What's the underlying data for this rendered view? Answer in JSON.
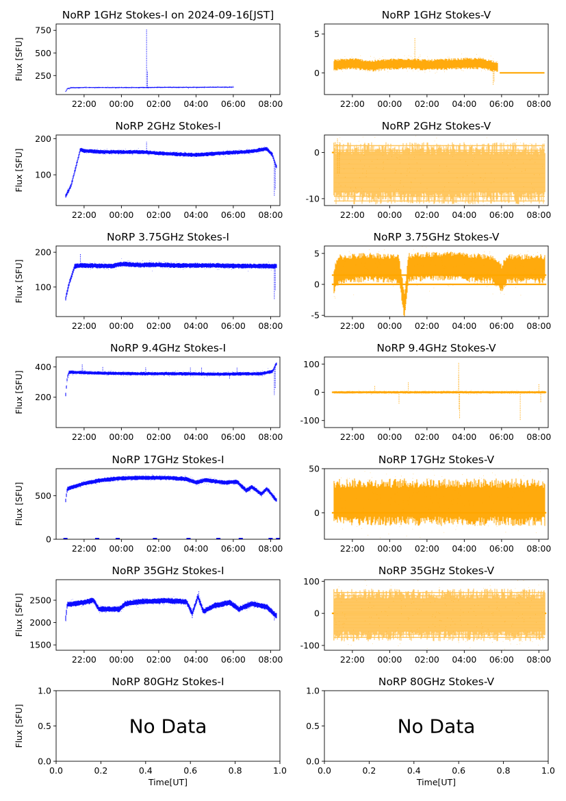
{
  "figure": {
    "series_colors": {
      "stokes_i": "#0000ff",
      "stokes_v": "#ffa500"
    },
    "time_ticks": [
      "22:00",
      "00:00",
      "02:00",
      "04:00",
      "06:00",
      "08:00"
    ],
    "xlabel": "Time[UT]",
    "no_data_text": "No Data"
  },
  "chart_data": [
    {
      "type": "scatter",
      "title": "NoRP 1GHz Stokes-I on 2024-09-16[JST]",
      "ylabel": "Flux [SFU]",
      "xlim": [
        20.5,
        32.5
      ],
      "ylim": [
        40,
        820
      ],
      "yticks": [
        250,
        500,
        750
      ],
      "x_start": 21.0,
      "x_end": 30.0,
      "profile": [
        [
          21.0,
          70
        ],
        [
          21.1,
          105
        ],
        [
          21.3,
          115
        ],
        [
          22.0,
          118
        ],
        [
          23.5,
          117
        ],
        [
          25.3,
          118
        ],
        [
          26.5,
          120
        ],
        [
          28.0,
          120
        ],
        [
          29.5,
          122
        ],
        [
          30.0,
          122
        ]
      ],
      "noise": 4,
      "spikes": [
        [
          25.35,
          760
        ],
        [
          25.4,
          300
        ],
        [
          24.0,
          125
        ]
      ],
      "flat_segments": []
    },
    {
      "type": "scatter",
      "title": "NoRP 1GHz Stokes-V",
      "ylabel": "",
      "xlim": [
        20.5,
        32.5
      ],
      "ylim": [
        -2.8,
        6.3
      ],
      "yticks": [
        0,
        5
      ],
      "x_start": 21.0,
      "x_end": 29.8,
      "profile": [
        [
          21.0,
          1.0
        ],
        [
          22.0,
          1.2
        ],
        [
          23.0,
          0.9
        ],
        [
          24.0,
          1.1
        ],
        [
          25.0,
          1.2
        ],
        [
          26.0,
          1.0
        ],
        [
          27.0,
          1.1
        ],
        [
          28.0,
          1.2
        ],
        [
          29.0,
          1.2
        ],
        [
          29.7,
          0.8
        ]
      ],
      "noise": 0.5,
      "spikes": [
        [
          25.35,
          4.5
        ],
        [
          29.55,
          -1.6
        ],
        [
          29.6,
          -1.2
        ]
      ],
      "flat_segments": [
        [
          29.9,
          32.3,
          0
        ]
      ]
    },
    {
      "type": "scatter",
      "title": "NoRP 2GHz Stokes-I",
      "ylabel": "Flux [SFU]",
      "xlim": [
        20.5,
        32.5
      ],
      "ylim": [
        15,
        210
      ],
      "yticks": [
        100,
        200
      ],
      "x_start": 21.0,
      "x_end": 32.3,
      "profile": [
        [
          21.0,
          40
        ],
        [
          21.3,
          70
        ],
        [
          21.6,
          130
        ],
        [
          21.8,
          170
        ],
        [
          22.0,
          166
        ],
        [
          23.0,
          163
        ],
        [
          25.0,
          163
        ],
        [
          26.5,
          158
        ],
        [
          28.0,
          155
        ],
        [
          29.5,
          160
        ],
        [
          31.0,
          165
        ],
        [
          31.8,
          172
        ],
        [
          32.1,
          155
        ],
        [
          32.3,
          122
        ]
      ],
      "noise": 4,
      "spikes": [
        [
          25.35,
          192
        ],
        [
          32.2,
          40
        ],
        [
          32.25,
          60
        ]
      ],
      "flat_segments": []
    },
    {
      "type": "scatter",
      "title": "NoRP 2GHz Stokes-V",
      "ylabel": "",
      "xlim": [
        20.5,
        32.5
      ],
      "ylim": [
        -11.5,
        3.8
      ],
      "yticks": [
        -10,
        0
      ],
      "x_start": 21.0,
      "x_end": 32.3,
      "profile": [
        [
          21.0,
          -4.5
        ],
        [
          32.3,
          -4.5
        ]
      ],
      "noise": 4.5,
      "quantized": true,
      "spikes": [
        [
          21.2,
          3.0
        ],
        [
          21.3,
          2.2
        ]
      ],
      "flat_segments": [
        [
          20.9,
          32.3,
          0
        ]
      ]
    },
    {
      "type": "scatter",
      "title": "NoRP 3.75GHz Stokes-I",
      "ylabel": "Flux [SFU]",
      "xlim": [
        20.5,
        32.5
      ],
      "ylim": [
        15,
        218
      ],
      "yticks": [
        100,
        200
      ],
      "x_start": 21.0,
      "x_end": 32.3,
      "profile": [
        [
          21.0,
          65
        ],
        [
          21.2,
          110
        ],
        [
          21.5,
          160
        ],
        [
          22.0,
          162
        ],
        [
          23.5,
          160
        ],
        [
          24.0,
          166
        ],
        [
          25.0,
          163
        ],
        [
          26.0,
          164
        ],
        [
          27.0,
          162
        ],
        [
          29.0,
          162
        ],
        [
          30.5,
          160
        ],
        [
          32.3,
          160
        ]
      ],
      "noise": 5,
      "spikes": [
        [
          21.8,
          195
        ],
        [
          32.2,
          65
        ],
        [
          32.25,
          90
        ],
        [
          25.0,
          172
        ]
      ],
      "flat_segments": []
    },
    {
      "type": "scatter",
      "title": "NoRP 3.75GHz Stokes-V",
      "ylabel": "",
      "xlim": [
        20.5,
        32.5
      ],
      "ylim": [
        -5.2,
        6.2
      ],
      "yticks": [
        -5,
        0,
        5
      ],
      "x_start": 21.0,
      "x_end": 32.3,
      "profile": [
        [
          21.0,
          0.5
        ],
        [
          21.3,
          2.5
        ],
        [
          23.0,
          2.8
        ],
        [
          24.5,
          2.5
        ],
        [
          24.8,
          -3.5
        ],
        [
          25.0,
          2.8
        ],
        [
          27.0,
          3.0
        ],
        [
          29.5,
          2.5
        ],
        [
          30.0,
          1.0
        ],
        [
          30.3,
          2.5
        ],
        [
          32.3,
          2.5
        ]
      ],
      "noise": 1.6,
      "spikes": [
        [
          24.8,
          -4.6
        ],
        [
          24.85,
          -4.2
        ]
      ],
      "flat_segments": [
        [
          20.9,
          32.4,
          0
        ],
        [
          20.9,
          32.4,
          1.5
        ]
      ]
    },
    {
      "type": "scatter",
      "title": "NoRP 9.4GHz Stokes-I",
      "ylabel": "Flux [SFU]",
      "xlim": [
        20.5,
        32.5
      ],
      "ylim": [
        0,
        465
      ],
      "yticks": [
        200,
        400
      ],
      "x_start": 21.0,
      "x_end": 32.3,
      "profile": [
        [
          21.0,
          200
        ],
        [
          21.1,
          330
        ],
        [
          21.2,
          365
        ],
        [
          23.0,
          358
        ],
        [
          25.0,
          355
        ],
        [
          27.0,
          355
        ],
        [
          29.0,
          352
        ],
        [
          31.5,
          355
        ],
        [
          32.1,
          370
        ],
        [
          32.3,
          420
        ]
      ],
      "noise": 8,
      "spikes": [
        [
          21.9,
          415
        ],
        [
          23.0,
          400
        ],
        [
          25.3,
          395
        ],
        [
          27.7,
          400
        ],
        [
          28.3,
          395
        ],
        [
          30.2,
          395
        ],
        [
          32.2,
          215
        ],
        [
          32.25,
          260
        ],
        [
          29.8,
          320
        ]
      ],
      "flat_segments": []
    },
    {
      "type": "scatter",
      "title": "NoRP 9.4GHz Stokes-V",
      "ylabel": "",
      "xlim": [
        20.5,
        32.5
      ],
      "ylim": [
        -125,
        125
      ],
      "yticks": [
        -100,
        0,
        100
      ],
      "x_start": 21.0,
      "x_end": 32.3,
      "profile": [
        [
          21.0,
          0
        ],
        [
          32.3,
          0
        ]
      ],
      "noise": 3,
      "spikes": [
        [
          27.7,
          105
        ],
        [
          27.75,
          -95
        ],
        [
          27.7,
          60
        ],
        [
          27.72,
          -60
        ],
        [
          25.0,
          35
        ],
        [
          24.5,
          -40
        ],
        [
          32.0,
          30
        ],
        [
          32.1,
          -35
        ],
        [
          31.0,
          -100
        ],
        [
          23.2,
          25
        ]
      ],
      "flat_segments": [
        [
          20.9,
          32.4,
          0
        ]
      ]
    },
    {
      "type": "scatter",
      "title": "NoRP 17GHz Stokes-I",
      "ylabel": "Flux [SFU]",
      "xlim": [
        20.5,
        32.5
      ],
      "ylim": [
        0,
        810
      ],
      "yticks": [
        0,
        500
      ],
      "x_start": 21.0,
      "x_end": 32.3,
      "profile": [
        [
          21.0,
          420
        ],
        [
          21.1,
          580
        ],
        [
          22.0,
          640
        ],
        [
          23.0,
          680
        ],
        [
          24.0,
          700
        ],
        [
          25.0,
          705
        ],
        [
          26.5,
          705
        ],
        [
          27.5,
          690
        ],
        [
          28.0,
          650
        ],
        [
          28.5,
          680
        ],
        [
          29.5,
          650
        ],
        [
          30.2,
          660
        ],
        [
          30.7,
          560
        ],
        [
          31.0,
          600
        ],
        [
          31.5,
          520
        ],
        [
          31.8,
          580
        ],
        [
          32.3,
          450
        ]
      ],
      "noise": 18,
      "spikes": [],
      "flat_segments": [],
      "zero_marks": [
        21.0,
        22.7,
        23.8,
        25.8,
        27.6,
        29.2,
        30.4,
        32.0,
        32.4
      ]
    },
    {
      "type": "scatter",
      "title": "NoRP 17GHz Stokes-V",
      "ylabel": "",
      "xlim": [
        20.5,
        32.5
      ],
      "ylim": [
        -30,
        50
      ],
      "yticks": [
        0,
        50
      ],
      "x_start": 21.0,
      "x_end": 32.3,
      "profile": [
        [
          21.0,
          12
        ],
        [
          32.3,
          12
        ]
      ],
      "noise": 18,
      "spikes": [],
      "flat_segments": [
        [
          20.9,
          32.4,
          0
        ]
      ]
    },
    {
      "type": "scatter",
      "title": "NoRP 35GHz Stokes-I",
      "ylabel": "Flux [SFU]",
      "xlim": [
        20.5,
        32.5
      ],
      "ylim": [
        1380,
        2960
      ],
      "yticks": [
        1500,
        2000,
        2500
      ],
      "x_start": 21.0,
      "x_end": 32.3,
      "profile": [
        [
          21.0,
          2050
        ],
        [
          21.1,
          2400
        ],
        [
          22.0,
          2450
        ],
        [
          22.5,
          2500
        ],
        [
          22.8,
          2300
        ],
        [
          23.9,
          2300
        ],
        [
          24.2,
          2420
        ],
        [
          25.0,
          2470
        ],
        [
          26.5,
          2490
        ],
        [
          27.5,
          2460
        ],
        [
          27.8,
          2200
        ],
        [
          28.1,
          2580
        ],
        [
          28.4,
          2250
        ],
        [
          29.0,
          2380
        ],
        [
          29.8,
          2450
        ],
        [
          30.3,
          2300
        ],
        [
          31.0,
          2420
        ],
        [
          31.8,
          2350
        ],
        [
          32.3,
          2150
        ]
      ],
      "noise": 45,
      "spikes": [
        [
          28.15,
          2700
        ],
        [
          27.8,
          2080
        ],
        [
          32.2,
          2030
        ]
      ],
      "flat_segments": []
    },
    {
      "type": "scatter",
      "title": "NoRP 35GHz Stokes-V",
      "ylabel": "",
      "xlim": [
        20.5,
        32.5
      ],
      "ylim": [
        -115,
        105
      ],
      "yticks": [
        -100,
        0,
        100
      ],
      "x_start": 21.0,
      "x_end": 32.3,
      "profile": [
        [
          21.0,
          -5
        ],
        [
          32.3,
          -5
        ]
      ],
      "noise": 55,
      "quantized": true,
      "spikes": [],
      "flat_segments": [
        [
          20.9,
          32.4,
          0
        ]
      ]
    },
    {
      "type": "empty",
      "title": "NoRP 80GHz Stokes-I",
      "ylabel": "Flux [SFU]",
      "xlim": [
        0,
        1
      ],
      "ylim": [
        0,
        1
      ],
      "xticks": [
        "0.0",
        "0.2",
        "0.4",
        "0.6",
        "0.8",
        "1.0"
      ],
      "yticks_text": [
        "0.0",
        "0.5",
        "1.0"
      ],
      "xlabel": "Time[UT]"
    },
    {
      "type": "empty",
      "title": "NoRP 80GHz Stokes-V",
      "ylabel": "",
      "xlim": [
        0,
        1
      ],
      "ylim": [
        0,
        1
      ],
      "xticks": [
        "0.0",
        "0.2",
        "0.4",
        "0.6",
        "0.8",
        "1.0"
      ],
      "yticks_text": [
        "0.0",
        "0.5",
        "1.0"
      ],
      "xlabel": "Time[UT]"
    }
  ]
}
